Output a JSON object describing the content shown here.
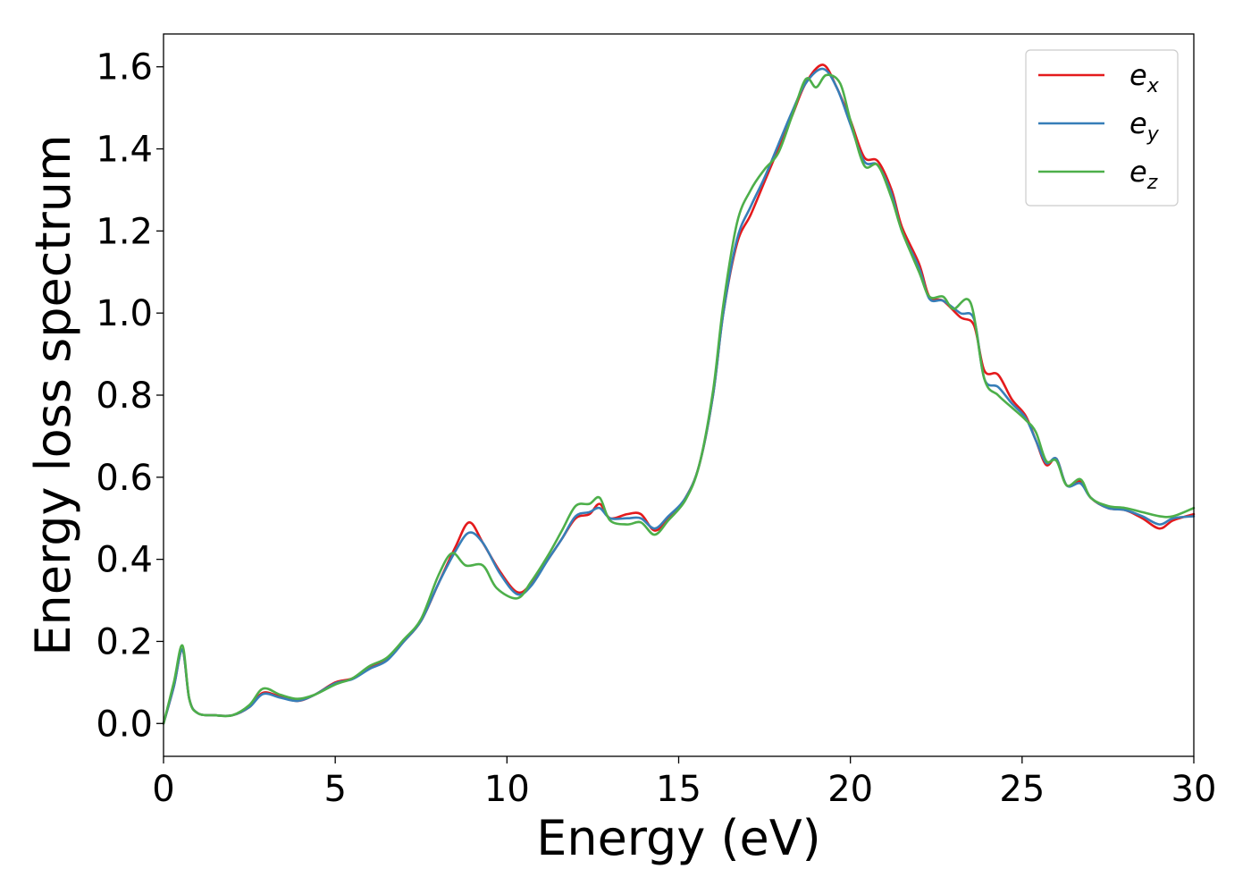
{
  "chart_data": {
    "type": "line",
    "title": "",
    "xlabel": "Energy (eV)",
    "ylabel": "Energy loss spectrum",
    "xlim": [
      0,
      30
    ],
    "ylim": [
      -0.08,
      1.68
    ],
    "xticks": [
      0,
      5,
      10,
      15,
      20,
      25,
      30
    ],
    "xtick_labels": [
      "0",
      "5",
      "10",
      "15",
      "20",
      "25",
      "30"
    ],
    "yticks": [
      0.0,
      0.2,
      0.4,
      0.6,
      0.8,
      1.0,
      1.2,
      1.4,
      1.6
    ],
    "ytick_labels": [
      "0.0",
      "0.2",
      "0.4",
      "0.6",
      "0.8",
      "1.0",
      "1.2",
      "1.4",
      "1.6"
    ],
    "grid": false,
    "legend_position": "top-right",
    "series": [
      {
        "name": "e_x",
        "base": "e",
        "sub": "x",
        "color": "#e41a1c",
        "points": [
          [
            0,
            0
          ],
          [
            0.3,
            0.09
          ],
          [
            0.55,
            0.18
          ],
          [
            0.75,
            0.06
          ],
          [
            1.0,
            0.025
          ],
          [
            1.5,
            0.02
          ],
          [
            2.0,
            0.02
          ],
          [
            2.5,
            0.04
          ],
          [
            2.9,
            0.075
          ],
          [
            3.4,
            0.065
          ],
          [
            3.9,
            0.055
          ],
          [
            4.4,
            0.07
          ],
          [
            5.0,
            0.1
          ],
          [
            5.5,
            0.11
          ],
          [
            6.0,
            0.135
          ],
          [
            6.5,
            0.155
          ],
          [
            7.0,
            0.2
          ],
          [
            7.5,
            0.25
          ],
          [
            8.0,
            0.34
          ],
          [
            8.5,
            0.43
          ],
          [
            8.9,
            0.49
          ],
          [
            9.3,
            0.44
          ],
          [
            9.8,
            0.37
          ],
          [
            10.3,
            0.32
          ],
          [
            10.7,
            0.34
          ],
          [
            11.2,
            0.4
          ],
          [
            11.6,
            0.45
          ],
          [
            12.0,
            0.5
          ],
          [
            12.4,
            0.51
          ],
          [
            12.7,
            0.535
          ],
          [
            13.0,
            0.5
          ],
          [
            13.5,
            0.51
          ],
          [
            13.9,
            0.51
          ],
          [
            14.3,
            0.47
          ],
          [
            14.7,
            0.5
          ],
          [
            15.2,
            0.55
          ],
          [
            15.6,
            0.63
          ],
          [
            16.0,
            0.8
          ],
          [
            16.3,
            1.0
          ],
          [
            16.7,
            1.17
          ],
          [
            17.1,
            1.24
          ],
          [
            17.5,
            1.32
          ],
          [
            17.9,
            1.4
          ],
          [
            18.3,
            1.48
          ],
          [
            18.7,
            1.56
          ],
          [
            19.2,
            1.605
          ],
          [
            19.6,
            1.55
          ],
          [
            20.0,
            1.47
          ],
          [
            20.4,
            1.38
          ],
          [
            20.8,
            1.37
          ],
          [
            21.2,
            1.3
          ],
          [
            21.5,
            1.21
          ],
          [
            22.0,
            1.12
          ],
          [
            22.3,
            1.04
          ],
          [
            22.7,
            1.03
          ],
          [
            23.2,
            0.99
          ],
          [
            23.6,
            0.97
          ],
          [
            23.9,
            0.86
          ],
          [
            24.3,
            0.85
          ],
          [
            24.7,
            0.79
          ],
          [
            25.1,
            0.75
          ],
          [
            25.4,
            0.69
          ],
          [
            25.7,
            0.63
          ],
          [
            26.0,
            0.645
          ],
          [
            26.3,
            0.58
          ],
          [
            26.7,
            0.59
          ],
          [
            27.0,
            0.55
          ],
          [
            27.5,
            0.525
          ],
          [
            28.0,
            0.52
          ],
          [
            28.5,
            0.5
          ],
          [
            29.0,
            0.475
          ],
          [
            29.4,
            0.495
          ],
          [
            30.0,
            0.51
          ]
        ]
      },
      {
        "name": "e_y",
        "base": "e",
        "sub": "y",
        "color": "#377eb8",
        "points": [
          [
            0,
            0
          ],
          [
            0.3,
            0.09
          ],
          [
            0.55,
            0.18
          ],
          [
            0.75,
            0.06
          ],
          [
            1.0,
            0.025
          ],
          [
            1.5,
            0.02
          ],
          [
            2.0,
            0.02
          ],
          [
            2.5,
            0.04
          ],
          [
            2.9,
            0.072
          ],
          [
            3.4,
            0.063
          ],
          [
            3.9,
            0.055
          ],
          [
            4.4,
            0.07
          ],
          [
            5.0,
            0.098
          ],
          [
            5.5,
            0.108
          ],
          [
            6.0,
            0.133
          ],
          [
            6.5,
            0.153
          ],
          [
            7.0,
            0.2
          ],
          [
            7.5,
            0.25
          ],
          [
            8.0,
            0.34
          ],
          [
            8.5,
            0.42
          ],
          [
            8.9,
            0.465
          ],
          [
            9.3,
            0.44
          ],
          [
            9.8,
            0.365
          ],
          [
            10.3,
            0.315
          ],
          [
            10.7,
            0.335
          ],
          [
            11.2,
            0.4
          ],
          [
            11.6,
            0.45
          ],
          [
            12.0,
            0.505
          ],
          [
            12.4,
            0.515
          ],
          [
            12.7,
            0.525
          ],
          [
            13.0,
            0.5
          ],
          [
            13.5,
            0.5
          ],
          [
            13.9,
            0.5
          ],
          [
            14.3,
            0.475
          ],
          [
            14.7,
            0.505
          ],
          [
            15.2,
            0.55
          ],
          [
            15.6,
            0.63
          ],
          [
            16.0,
            0.8
          ],
          [
            16.3,
            1.0
          ],
          [
            16.7,
            1.18
          ],
          [
            17.1,
            1.26
          ],
          [
            17.5,
            1.33
          ],
          [
            17.9,
            1.41
          ],
          [
            18.3,
            1.49
          ],
          [
            18.7,
            1.56
          ],
          [
            19.2,
            1.595
          ],
          [
            19.6,
            1.55
          ],
          [
            20.0,
            1.46
          ],
          [
            20.4,
            1.37
          ],
          [
            20.8,
            1.36
          ],
          [
            21.2,
            1.29
          ],
          [
            21.5,
            1.2
          ],
          [
            22.0,
            1.11
          ],
          [
            22.3,
            1.035
          ],
          [
            22.7,
            1.03
          ],
          [
            23.2,
            1.0
          ],
          [
            23.6,
            0.985
          ],
          [
            23.9,
            0.84
          ],
          [
            24.3,
            0.82
          ],
          [
            24.7,
            0.78
          ],
          [
            25.1,
            0.745
          ],
          [
            25.4,
            0.69
          ],
          [
            25.7,
            0.635
          ],
          [
            26.0,
            0.645
          ],
          [
            26.3,
            0.58
          ],
          [
            26.7,
            0.585
          ],
          [
            27.0,
            0.55
          ],
          [
            27.5,
            0.525
          ],
          [
            28.0,
            0.52
          ],
          [
            28.5,
            0.505
          ],
          [
            29.0,
            0.485
          ],
          [
            29.4,
            0.5
          ],
          [
            30.0,
            0.505
          ]
        ]
      },
      {
        "name": "e_z",
        "base": "e",
        "sub": "z",
        "color": "#4daf4a",
        "points": [
          [
            0,
            0
          ],
          [
            0.3,
            0.1
          ],
          [
            0.55,
            0.19
          ],
          [
            0.75,
            0.06
          ],
          [
            1.0,
            0.025
          ],
          [
            1.5,
            0.02
          ],
          [
            2.0,
            0.02
          ],
          [
            2.5,
            0.045
          ],
          [
            2.9,
            0.085
          ],
          [
            3.4,
            0.07
          ],
          [
            3.9,
            0.06
          ],
          [
            4.4,
            0.07
          ],
          [
            5.0,
            0.095
          ],
          [
            5.5,
            0.11
          ],
          [
            6.0,
            0.14
          ],
          [
            6.5,
            0.16
          ],
          [
            7.0,
            0.205
          ],
          [
            7.5,
            0.255
          ],
          [
            8.0,
            0.36
          ],
          [
            8.4,
            0.415
          ],
          [
            8.8,
            0.385
          ],
          [
            9.3,
            0.385
          ],
          [
            9.7,
            0.33
          ],
          [
            10.3,
            0.305
          ],
          [
            10.7,
            0.345
          ],
          [
            11.2,
            0.41
          ],
          [
            11.6,
            0.47
          ],
          [
            12.0,
            0.53
          ],
          [
            12.4,
            0.535
          ],
          [
            12.7,
            0.55
          ],
          [
            13.0,
            0.495
          ],
          [
            13.5,
            0.485
          ],
          [
            13.9,
            0.49
          ],
          [
            14.3,
            0.46
          ],
          [
            14.7,
            0.495
          ],
          [
            15.2,
            0.545
          ],
          [
            15.6,
            0.63
          ],
          [
            16.0,
            0.81
          ],
          [
            16.3,
            1.02
          ],
          [
            16.7,
            1.22
          ],
          [
            17.1,
            1.3
          ],
          [
            17.5,
            1.35
          ],
          [
            17.9,
            1.39
          ],
          [
            18.3,
            1.48
          ],
          [
            18.7,
            1.57
          ],
          [
            19.0,
            1.55
          ],
          [
            19.3,
            1.58
          ],
          [
            19.7,
            1.56
          ],
          [
            20.0,
            1.47
          ],
          [
            20.4,
            1.36
          ],
          [
            20.8,
            1.36
          ],
          [
            21.2,
            1.28
          ],
          [
            21.5,
            1.2
          ],
          [
            22.0,
            1.1
          ],
          [
            22.3,
            1.04
          ],
          [
            22.7,
            1.04
          ],
          [
            23.0,
            1.01
          ],
          [
            23.5,
            1.025
          ],
          [
            23.9,
            0.84
          ],
          [
            24.3,
            0.8
          ],
          [
            24.7,
            0.77
          ],
          [
            25.1,
            0.74
          ],
          [
            25.4,
            0.71
          ],
          [
            25.7,
            0.64
          ],
          [
            26.0,
            0.64
          ],
          [
            26.3,
            0.58
          ],
          [
            26.7,
            0.595
          ],
          [
            27.0,
            0.55
          ],
          [
            27.5,
            0.53
          ],
          [
            28.0,
            0.525
          ],
          [
            28.5,
            0.515
          ],
          [
            29.0,
            0.505
          ],
          [
            29.4,
            0.505
          ],
          [
            30.0,
            0.525
          ]
        ]
      }
    ]
  }
}
